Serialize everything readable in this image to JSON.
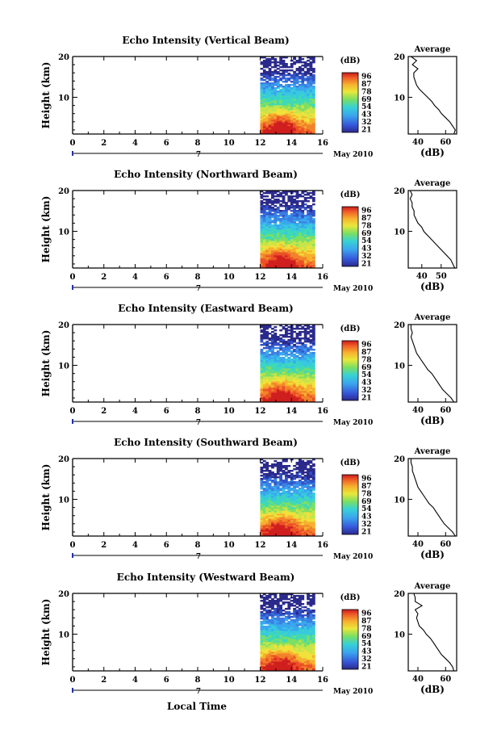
{
  "figure": {
    "ylabel": "Height (km)",
    "xlabel": "Local Time",
    "date_label": "May 2010",
    "day_label": "7",
    "colorbar_unit": "(dB)",
    "colorbar_ticks": [
      "96",
      "87",
      "78",
      "69",
      "54",
      "43",
      "32",
      "21"
    ],
    "average_title": "Average",
    "average_xlabel": "(dB)",
    "colors": {
      "data_start_hour": 12,
      "data_end_hour": 15.5
    }
  },
  "chart_data": [
    {
      "type": "heatmap",
      "title": "Echo Intensity (Vertical Beam)",
      "x_ticks": [
        "0",
        "2",
        "4",
        "6",
        "8",
        "10",
        "12",
        "14",
        "16"
      ],
      "y_ticks": [
        "20",
        "10"
      ],
      "xlim": [
        0,
        16
      ],
      "ylim": [
        1,
        20
      ],
      "x_data_range": [
        12,
        15.5
      ],
      "colorbar": {
        "label": "(dB)",
        "ticks": [
          "96",
          "87",
          "78",
          "69",
          "54",
          "43",
          "32",
          "21"
        ]
      },
      "average": {
        "title": "Average",
        "xlabel": "(dB)",
        "x_ticks": [
          "40",
          "60"
        ],
        "y_ticks": [
          "20",
          "10"
        ],
        "xlim": [
          33,
          68
        ],
        "profile": [
          [
            66,
            1
          ],
          [
            67,
            2
          ],
          [
            65,
            3
          ],
          [
            63,
            4
          ],
          [
            60,
            5
          ],
          [
            57,
            6
          ],
          [
            55,
            7
          ],
          [
            52,
            8
          ],
          [
            50,
            9
          ],
          [
            47,
            10
          ],
          [
            44,
            11
          ],
          [
            41,
            12
          ],
          [
            39,
            13
          ],
          [
            38,
            14
          ],
          [
            37,
            15
          ],
          [
            37,
            16
          ],
          [
            40,
            17
          ],
          [
            36,
            18
          ],
          [
            39,
            19
          ],
          [
            35,
            20
          ]
        ]
      }
    },
    {
      "type": "heatmap",
      "title": "Echo Intensity (Northward Beam)",
      "x_ticks": [
        "0",
        "2",
        "4",
        "6",
        "8",
        "10",
        "12",
        "14",
        "16"
      ],
      "y_ticks": [
        "20",
        "10"
      ],
      "xlim": [
        0,
        16
      ],
      "ylim": [
        1,
        20
      ],
      "x_data_range": [
        12,
        15.5
      ],
      "colorbar": {
        "label": "(dB)",
        "ticks": [
          "96",
          "87",
          "78",
          "69",
          "54",
          "43",
          "32",
          "21"
        ]
      },
      "average": {
        "title": "Average",
        "xlabel": "(dB)",
        "x_ticks": [
          "40",
          "50"
        ],
        "y_ticks": [
          "20",
          "10"
        ],
        "xlim": [
          33,
          58
        ],
        "profile": [
          [
            57,
            1
          ],
          [
            56,
            2
          ],
          [
            55,
            3
          ],
          [
            53,
            4
          ],
          [
            51,
            5
          ],
          [
            49,
            6
          ],
          [
            47,
            7
          ],
          [
            45,
            8
          ],
          [
            43,
            9
          ],
          [
            41,
            10
          ],
          [
            40,
            11
          ],
          [
            38,
            12
          ],
          [
            37,
            13
          ],
          [
            36,
            14
          ],
          [
            36,
            15
          ],
          [
            35,
            16
          ],
          [
            35,
            17
          ],
          [
            34,
            18
          ],
          [
            35,
            19
          ],
          [
            34,
            20
          ]
        ]
      }
    },
    {
      "type": "heatmap",
      "title": "Echo Intensity (Eastward Beam)",
      "x_ticks": [
        "0",
        "2",
        "4",
        "6",
        "8",
        "10",
        "12",
        "14",
        "16"
      ],
      "y_ticks": [
        "20",
        "10"
      ],
      "xlim": [
        0,
        16
      ],
      "ylim": [
        1,
        20
      ],
      "x_data_range": [
        12,
        15.5
      ],
      "colorbar": {
        "label": "(dB)",
        "ticks": [
          "96",
          "87",
          "78",
          "69",
          "54",
          "43",
          "32",
          "21"
        ]
      },
      "average": {
        "title": "Average",
        "xlabel": "(dB)",
        "x_ticks": [
          "40",
          "60"
        ],
        "y_ticks": [
          "20",
          "10"
        ],
        "xlim": [
          33,
          68
        ],
        "profile": [
          [
            66,
            1
          ],
          [
            64,
            2
          ],
          [
            61,
            3
          ],
          [
            58,
            4
          ],
          [
            56,
            5
          ],
          [
            54,
            6
          ],
          [
            52,
            7
          ],
          [
            50,
            8
          ],
          [
            47,
            9
          ],
          [
            45,
            10
          ],
          [
            43,
            11
          ],
          [
            41,
            12
          ],
          [
            39,
            13
          ],
          [
            38,
            14
          ],
          [
            37,
            15
          ],
          [
            36,
            16
          ],
          [
            35,
            17
          ],
          [
            36,
            18
          ],
          [
            35,
            19
          ],
          [
            35,
            20
          ]
        ]
      }
    },
    {
      "type": "heatmap",
      "title": "Echo Intensity (Southward Beam)",
      "x_ticks": [
        "0",
        "2",
        "4",
        "6",
        "8",
        "10",
        "12",
        "14",
        "16"
      ],
      "y_ticks": [
        "20",
        "10"
      ],
      "xlim": [
        0,
        16
      ],
      "ylim": [
        1,
        20
      ],
      "x_data_range": [
        12,
        15.5
      ],
      "colorbar": {
        "label": "(dB)",
        "ticks": [
          "96",
          "87",
          "78",
          "69",
          "54",
          "43",
          "32",
          "21"
        ]
      },
      "average": {
        "title": "Average",
        "xlabel": "(dB)",
        "x_ticks": [
          "40",
          "60"
        ],
        "y_ticks": [
          "20",
          "10"
        ],
        "xlim": [
          33,
          68
        ],
        "profile": [
          [
            67,
            1
          ],
          [
            65,
            2
          ],
          [
            62,
            3
          ],
          [
            59,
            4
          ],
          [
            57,
            5
          ],
          [
            55,
            6
          ],
          [
            53,
            7
          ],
          [
            51,
            8
          ],
          [
            48,
            9
          ],
          [
            46,
            10
          ],
          [
            44,
            11
          ],
          [
            42,
            12
          ],
          [
            40,
            13
          ],
          [
            39,
            14
          ],
          [
            38,
            15
          ],
          [
            37,
            16
          ],
          [
            36,
            17
          ],
          [
            36,
            18
          ],
          [
            35,
            19
          ],
          [
            35,
            20
          ]
        ]
      }
    },
    {
      "type": "heatmap",
      "title": "Echo Intensity (Westward Beam)",
      "x_ticks": [
        "0",
        "2",
        "4",
        "6",
        "8",
        "10",
        "12",
        "14",
        "16"
      ],
      "y_ticks": [
        "20",
        "10"
      ],
      "xlim": [
        0,
        16
      ],
      "ylim": [
        1,
        20
      ],
      "x_data_range": [
        12,
        15.5
      ],
      "colorbar": {
        "label": "(dB)",
        "ticks": [
          "96",
          "87",
          "78",
          "69",
          "54",
          "43",
          "32",
          "21"
        ]
      },
      "average": {
        "title": "Average",
        "xlabel": "(dB)",
        "x_ticks": [
          "40",
          "60"
        ],
        "y_ticks": [
          "20",
          "10"
        ],
        "xlim": [
          33,
          68
        ],
        "profile": [
          [
            66,
            1
          ],
          [
            65,
            2
          ],
          [
            63,
            3
          ],
          [
            60,
            4
          ],
          [
            57,
            5
          ],
          [
            55,
            6
          ],
          [
            53,
            7
          ],
          [
            51,
            8
          ],
          [
            49,
            9
          ],
          [
            46,
            10
          ],
          [
            44,
            11
          ],
          [
            41,
            12
          ],
          [
            40,
            13
          ],
          [
            39,
            14
          ],
          [
            40,
            15
          ],
          [
            38,
            16
          ],
          [
            43,
            17
          ],
          [
            38,
            18
          ],
          [
            38,
            19
          ],
          [
            37,
            20
          ]
        ]
      }
    }
  ]
}
